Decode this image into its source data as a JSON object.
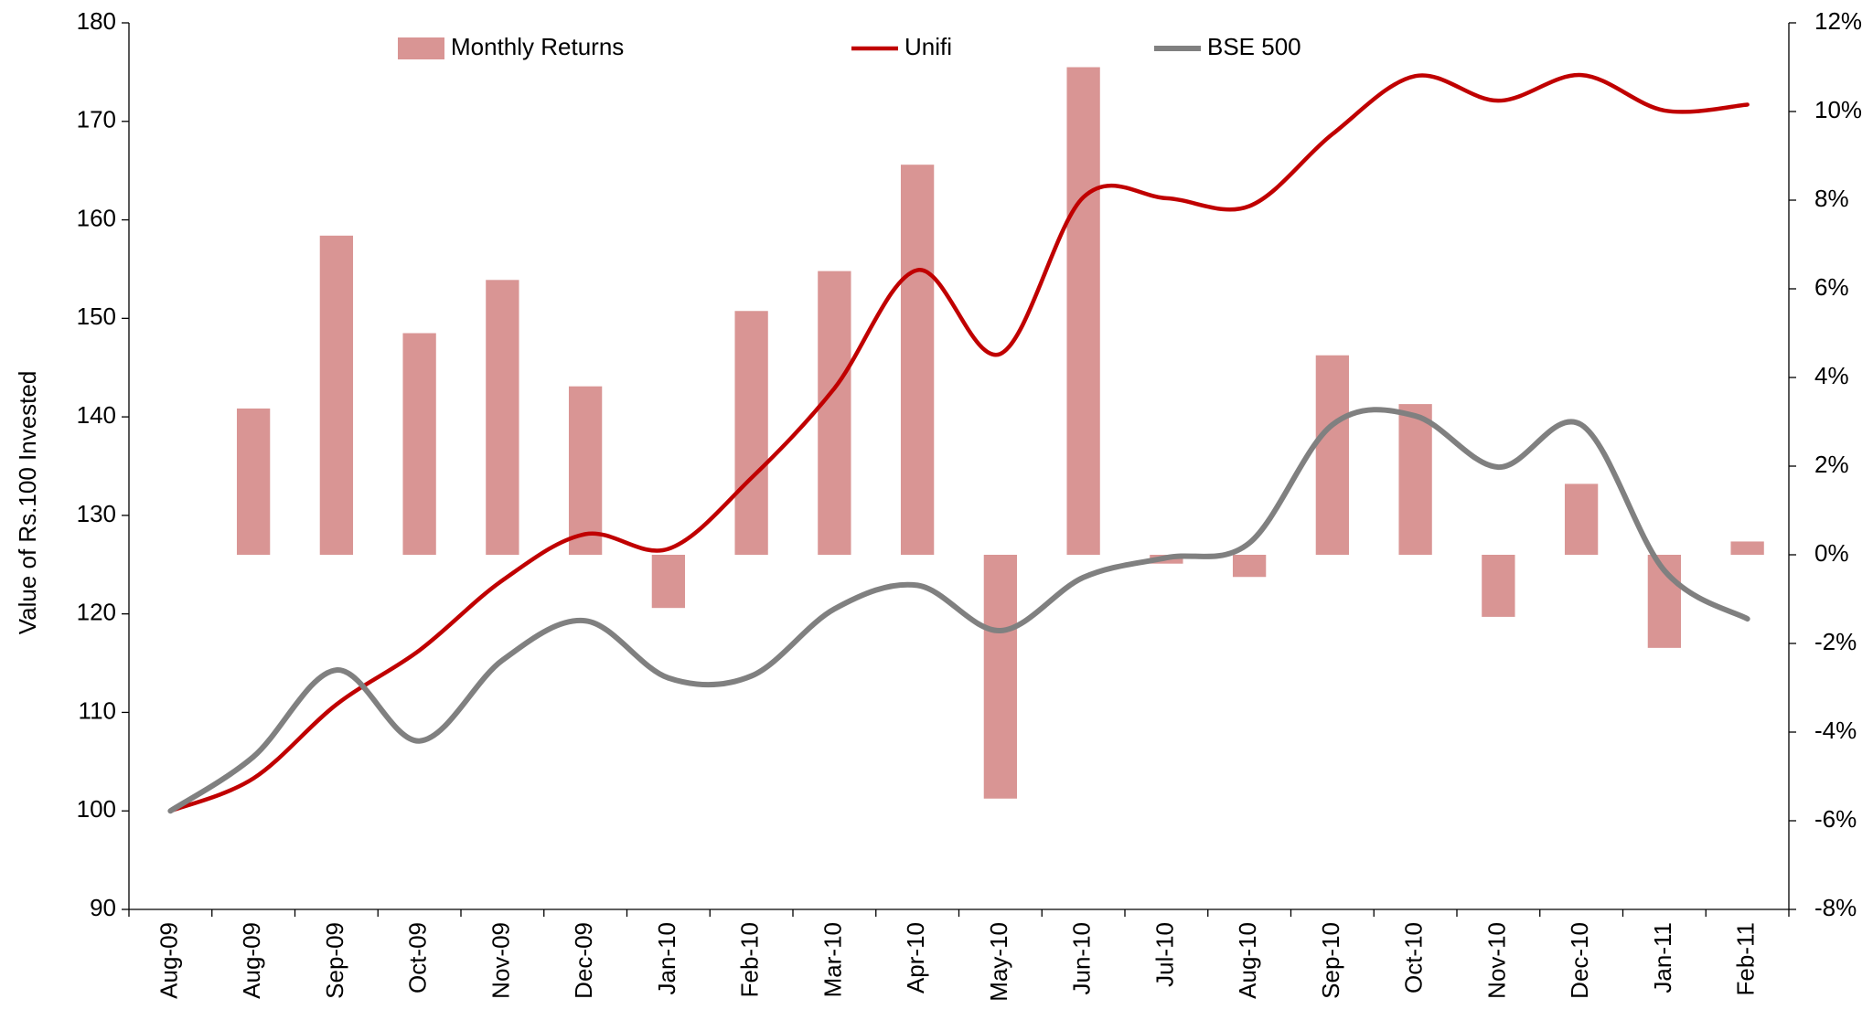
{
  "chart_data": {
    "type": "bar-line",
    "y_label": "Value of Rs.100 Invested",
    "categories": [
      "Aug-09",
      "Aug-09",
      "Sep-09",
      "Oct-09",
      "Nov-09",
      "Dec-09",
      "Jan-10",
      "Feb-10",
      "Mar-10",
      "Apr-10",
      "May-10",
      "Jun-10",
      "Jul-10",
      "Aug-10",
      "Sep-10",
      "Oct-10",
      "Nov-10",
      "Dec-10",
      "Jan-11",
      "Feb-11"
    ],
    "series": [
      {
        "name": "Monthly Returns",
        "type": "bar",
        "axis": "y2",
        "color": "#d99594",
        "values": [
          null,
          3.3,
          7.2,
          5.0,
          6.2,
          3.8,
          -1.2,
          5.5,
          6.4,
          8.8,
          -5.5,
          11.0,
          -0.2,
          -0.5,
          4.5,
          3.4,
          -1.4,
          1.6,
          -2.1,
          0.3
        ]
      },
      {
        "name": "Unifi",
        "type": "line",
        "color": "#c00000",
        "values": [
          100,
          103.3,
          110.8,
          116.3,
          123.4,
          128.1,
          126.6,
          133.8,
          142.9,
          154.9,
          146.4,
          162.3,
          162.2,
          161.4,
          168.7,
          174.6,
          172.1,
          174.7,
          171.1,
          171.7
        ]
      },
      {
        "name": "BSE 500",
        "type": "line",
        "color": "#808080",
        "values": [
          100,
          105.5,
          114.3,
          107.1,
          115.3,
          119.3,
          113.5,
          113.7,
          120.5,
          122.9,
          118.3,
          123.7,
          125.7,
          127.2,
          139.2,
          140.1,
          134.9,
          139.2,
          124.4,
          119.5
        ]
      }
    ],
    "ylim": [
      90,
      180
    ],
    "yticks": [
      90,
      100,
      110,
      120,
      130,
      140,
      150,
      160,
      170,
      180
    ],
    "y2lim": [
      -8,
      12
    ],
    "y2ticks": [
      {
        "value": -8,
        "label": "-8%"
      },
      {
        "value": -6,
        "label": "-6%"
      },
      {
        "value": -4,
        "label": "-4%"
      },
      {
        "value": -2,
        "label": "-2%"
      },
      {
        "value": 0,
        "label": "0%"
      },
      {
        "value": 2,
        "label": "2%"
      },
      {
        "value": 4,
        "label": "4%"
      },
      {
        "value": 6,
        "label": "6%"
      },
      {
        "value": 8,
        "label": "8%"
      },
      {
        "value": 10,
        "label": "10%"
      },
      {
        "value": 12,
        "label": "12%"
      }
    ],
    "grid": false,
    "legend": "top"
  }
}
